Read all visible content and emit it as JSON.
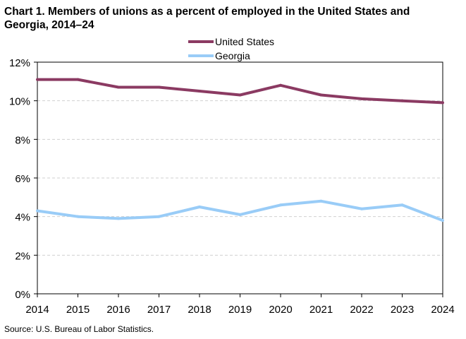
{
  "title": {
    "line1": "Chart 1. Members of unions as a percent of employed  in the United States and",
    "line2": "Georgia, 2014–24"
  },
  "source": "Source:  U.S. Bureau  of Labor Statistics.",
  "chart_data": {
    "type": "line",
    "title": "Chart 1. Members of unions as a percent of employed in the United States and Georgia, 2014–24",
    "x": [
      "2014",
      "2015",
      "2016",
      "2017",
      "2018",
      "2019",
      "2020",
      "2021",
      "2022",
      "2023",
      "2024"
    ],
    "yticks": [
      "0%",
      "2%",
      "4%",
      "6%",
      "8%",
      "10%",
      "12%"
    ],
    "ylim": [
      0,
      12
    ],
    "ytick_values": [
      0,
      2,
      4,
      6,
      8,
      10,
      12
    ],
    "grid": true,
    "legend_position": "top-center",
    "series": [
      {
        "name": "United States",
        "color": "#8b3a62",
        "values": [
          11.1,
          11.1,
          10.7,
          10.7,
          10.5,
          10.3,
          10.8,
          10.3,
          10.1,
          10.0,
          9.9
        ]
      },
      {
        "name": "Georgia",
        "color": "#99ccf7",
        "values": [
          4.3,
          4.0,
          3.9,
          4.0,
          4.5,
          4.1,
          4.6,
          4.8,
          4.4,
          4.6,
          3.8
        ]
      }
    ]
  }
}
